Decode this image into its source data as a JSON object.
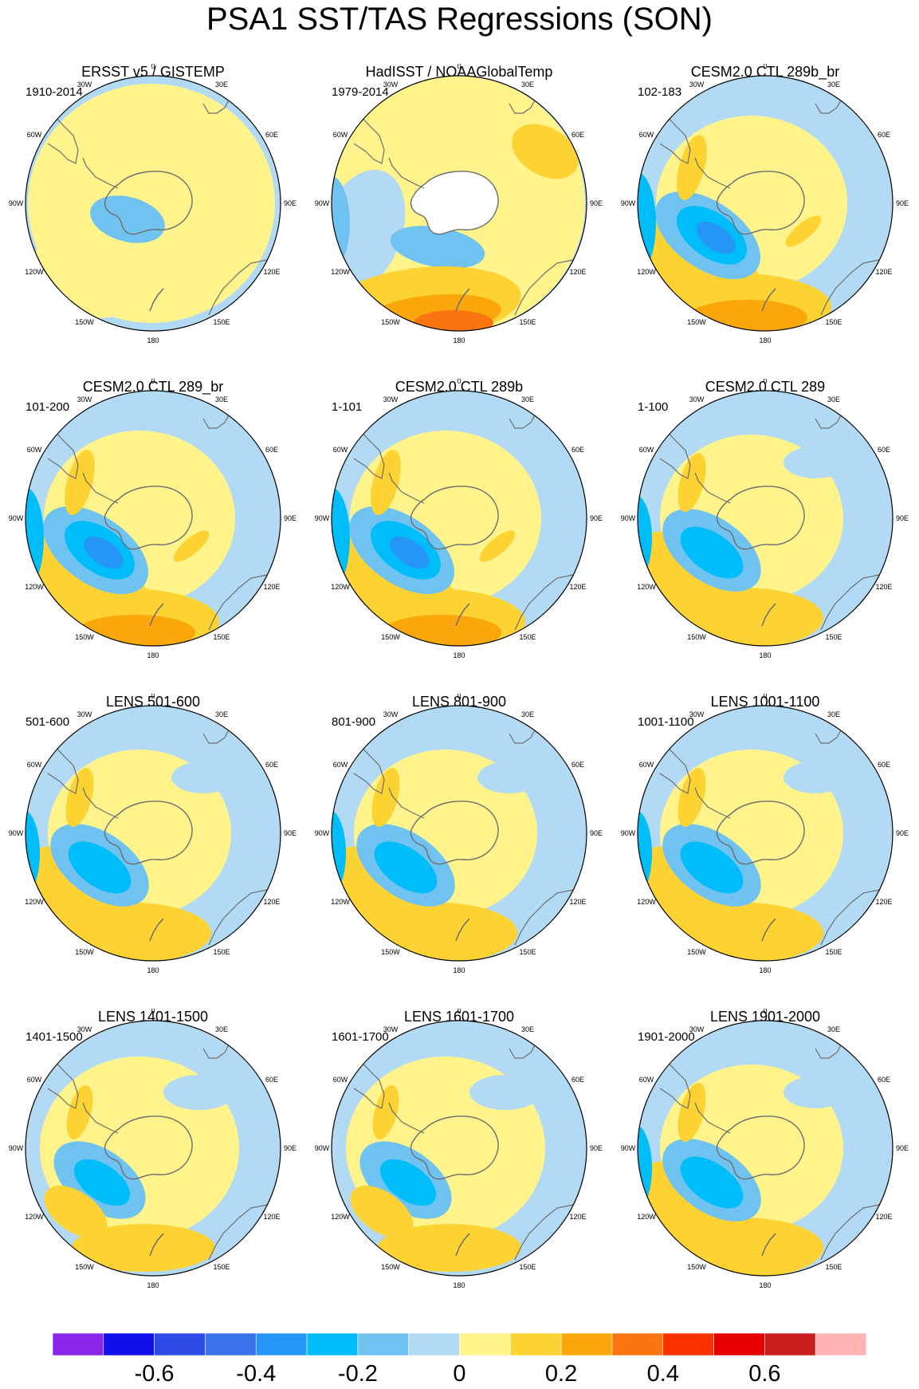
{
  "title": "PSA1 SST/TAS Regressions (SON)",
  "lon_labels": [
    "0",
    "30E",
    "60E",
    "90E",
    "120E",
    "150E",
    "180",
    "150W",
    "120W",
    "90W",
    "60W",
    "30W"
  ],
  "panels": [
    {
      "title": "ERSST v5 / GISTEMP",
      "period": "1910-2014",
      "pattern": "obs1"
    },
    {
      "title": "HadISST / NOAAGlobalTemp",
      "period": "1979-2014",
      "pattern": "obs2"
    },
    {
      "title": "CESM2.0 CTL 289b_br",
      "period": "102-183",
      "pattern": "model_strong"
    },
    {
      "title": "CESM2.0 CTL 289_br",
      "period": "101-200",
      "pattern": "model_strong"
    },
    {
      "title": "CESM2.0 CTL 289b",
      "period": "1-101",
      "pattern": "model_strong"
    },
    {
      "title": "CESM2.0 CTL 289",
      "period": "1-100",
      "pattern": "model_medium"
    },
    {
      "title": "LENS 501-600",
      "period": "501-600",
      "pattern": "model_medium"
    },
    {
      "title": "LENS 801-900",
      "period": "801-900",
      "pattern": "model_medium"
    },
    {
      "title": "LENS 1001-1100",
      "period": "1001-1100",
      "pattern": "model_medium"
    },
    {
      "title": "LENS 1401-1500",
      "period": "1401-1500",
      "pattern": "model_weak"
    },
    {
      "title": "LENS 1601-1700",
      "period": "1601-1700",
      "pattern": "model_weak"
    },
    {
      "title": "LENS 1901-2000",
      "period": "1901-2000",
      "pattern": "model_medium"
    }
  ],
  "colorbar": {
    "colors": [
      "#8a26e8",
      "#1010e8",
      "#2e4be8",
      "#3a72ea",
      "#2596f5",
      "#00bdfa",
      "#70c3f0",
      "#b2daf4",
      "#fff38c",
      "#fdd233",
      "#faa70b",
      "#fa7410",
      "#fa3200",
      "#e60000",
      "#c81e1e",
      "#ffb4b4"
    ],
    "tick_labels": [
      "-0.6",
      "-0.4",
      "-0.2",
      "0",
      "0.2",
      "0.4",
      "0.6"
    ],
    "tick_values": [
      -0.6,
      -0.4,
      -0.2,
      0,
      0.2,
      0.4,
      0.6
    ],
    "min": -0.8,
    "max": 0.8
  }
}
